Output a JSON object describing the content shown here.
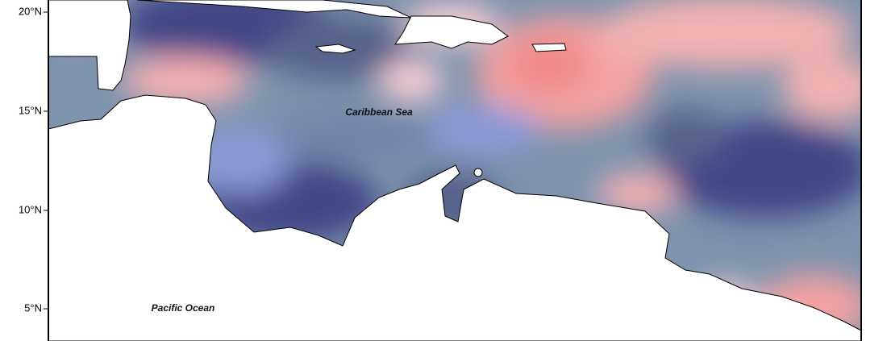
{
  "map": {
    "lat_ticks": [
      "20°N",
      "15°N",
      "10°N",
      "5°N"
    ],
    "labels": [
      "Caribbean Sea",
      "Pacific Ocean"
    ]
  }
}
